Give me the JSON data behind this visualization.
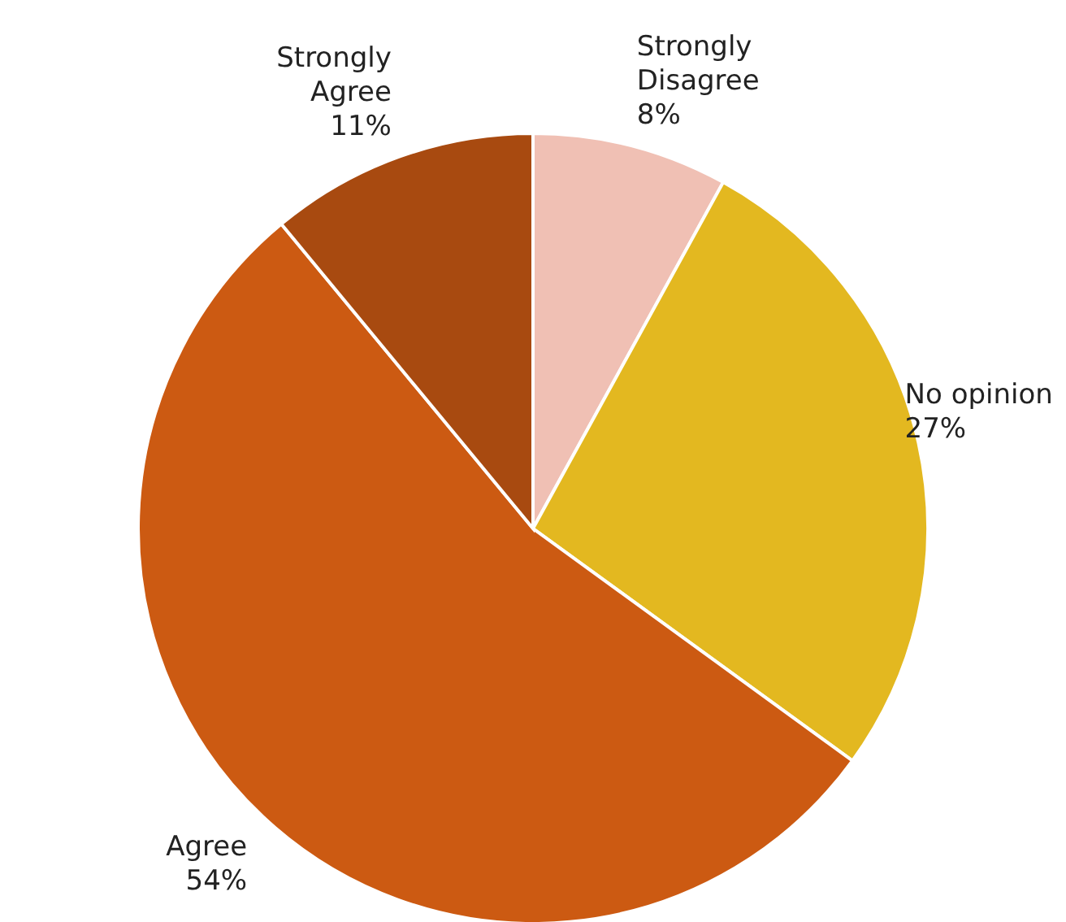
{
  "chart_data": {
    "type": "pie",
    "categories": [
      "Strongly Disagree",
      "No opinion",
      "Agree",
      "Strongly Agree"
    ],
    "values": [
      8,
      27,
      54,
      11
    ],
    "colors": [
      "#f0c0b4",
      "#e3b820",
      "#cc5a12",
      "#a84a10"
    ],
    "value_labels": [
      "8%",
      "27%",
      "54%",
      "11%"
    ]
  }
}
